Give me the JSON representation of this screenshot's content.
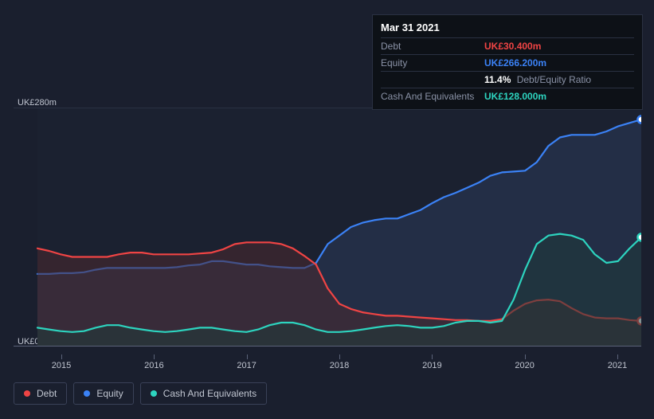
{
  "chart": {
    "type": "area",
    "background_color": "#1a1f2e",
    "plot_background": "#1e2433",
    "grid_color": "#2a3142",
    "text_color": "#c0c5d0",
    "ylim": [
      0,
      280
    ],
    "y_top_label": "UK£280m",
    "y_bottom_label": "UK£0",
    "x_categories": [
      "2015",
      "2016",
      "2017",
      "2018",
      "2019",
      "2020",
      "2021"
    ],
    "series": [
      {
        "name": "Equity",
        "color": "#3b82f6",
        "fill": "#2a3a5a",
        "data": [
          85,
          85,
          86,
          86,
          87,
          90,
          92,
          92,
          92,
          92,
          92,
          92,
          93,
          95,
          96,
          100,
          100,
          98,
          96,
          96,
          94,
          93,
          92,
          92,
          98,
          120,
          130,
          140,
          145,
          148,
          150,
          150,
          155,
          160,
          168,
          175,
          180,
          186,
          192,
          200,
          204,
          205,
          206,
          216,
          235,
          245,
          248,
          248,
          248,
          252,
          258,
          262,
          266
        ]
      },
      {
        "name": "Debt",
        "color": "#ef4444",
        "fill": "#4a2a30",
        "data": [
          115,
          112,
          108,
          105,
          105,
          105,
          105,
          108,
          110,
          110,
          108,
          108,
          108,
          108,
          109,
          110,
          114,
          120,
          122,
          122,
          122,
          120,
          115,
          106,
          96,
          68,
          50,
          44,
          40,
          38,
          36,
          36,
          35,
          34,
          33,
          32,
          31,
          31,
          30,
          30,
          32,
          42,
          50,
          54,
          55,
          53,
          45,
          38,
          34,
          33,
          33,
          31,
          30
        ]
      },
      {
        "name": "Cash And Equivalents",
        "color": "#2dd4bf",
        "fill": "#1f3a3a",
        "data": [
          22,
          20,
          18,
          17,
          18,
          22,
          25,
          25,
          22,
          20,
          18,
          17,
          18,
          20,
          22,
          22,
          20,
          18,
          17,
          20,
          25,
          28,
          28,
          25,
          20,
          17,
          17,
          18,
          20,
          22,
          24,
          25,
          24,
          22,
          22,
          24,
          28,
          30,
          30,
          28,
          30,
          55,
          90,
          120,
          130,
          132,
          130,
          125,
          108,
          98,
          100,
          115,
          128
        ]
      }
    ],
    "end_markers": true
  },
  "tooltip": {
    "date": "Mar 31 2021",
    "rows": [
      {
        "label": "Debt",
        "value": "UK£30.400m",
        "color": "#ef4444"
      },
      {
        "label": "Equity",
        "value": "UK£266.200m",
        "color": "#3b82f6"
      },
      {
        "label": "",
        "value": "11.4%",
        "suffix": "Debt/Equity Ratio",
        "color": "#ffffff"
      },
      {
        "label": "Cash And Equivalents",
        "value": "UK£128.000m",
        "color": "#2dd4bf"
      }
    ]
  },
  "legend": {
    "items": [
      {
        "label": "Debt",
        "color": "#ef4444"
      },
      {
        "label": "Equity",
        "color": "#3b82f6"
      },
      {
        "label": "Cash And Equivalents",
        "color": "#2dd4bf"
      }
    ]
  }
}
